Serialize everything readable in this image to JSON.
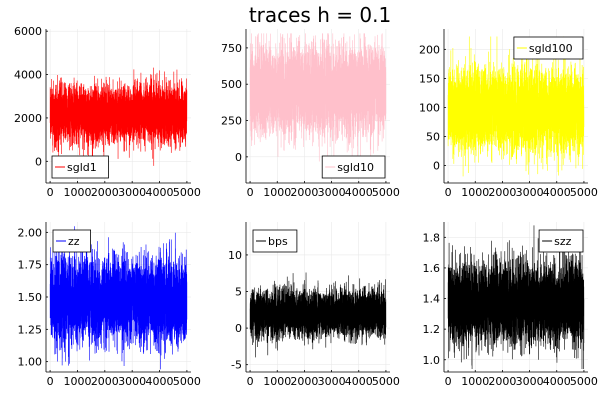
{
  "title": "traces h = 0.1",
  "chart_data": [
    {
      "type": "line",
      "series": [
        {
          "name": "sgld1",
          "color": "#ff0000",
          "mean": 2200,
          "sd": 650,
          "min": -1800,
          "max": 5800
        }
      ],
      "x": {
        "range": [
          0,
          5000
        ],
        "n_points": 5000
      },
      "xlim": [
        -150,
        5150
      ],
      "ylim": [
        -1000,
        6100
      ],
      "xticks": [
        0,
        1000,
        2000,
        3000,
        4000,
        5000
      ],
      "xtick_labels": [
        "0",
        "1000",
        "2000",
        "3000",
        "4000",
        "5000"
      ],
      "yticks": [
        0,
        2000,
        4000,
        6000
      ],
      "ytick_labels": [
        "0",
        "2000",
        "4000",
        "6000"
      ],
      "grid": true,
      "legend": "bottom-left",
      "title": "",
      "xlabel": "",
      "ylabel": ""
    },
    {
      "type": "line",
      "series": [
        {
          "name": "sgld10",
          "color": "#ffc0cb",
          "mean": 460,
          "sd": 150,
          "min": -200,
          "max": 850
        }
      ],
      "x": {
        "range": [
          0,
          5000
        ],
        "n_points": 5000
      },
      "xlim": [
        -150,
        5150
      ],
      "ylim": [
        -180,
        880
      ],
      "xticks": [
        0,
        1000,
        2000,
        3000,
        4000,
        5000
      ],
      "xtick_labels": [
        "0",
        "1000",
        "2000",
        "3000",
        "4000",
        "5000"
      ],
      "yticks": [
        0,
        250,
        500,
        750
      ],
      "ytick_labels": [
        "0",
        "250",
        "500",
        "750"
      ],
      "grid": true,
      "legend": "bottom-right",
      "title": "",
      "xlabel": "",
      "ylabel": ""
    },
    {
      "type": "line",
      "series": [
        {
          "name": "sgld100",
          "color": "#ffff00",
          "mean": 95,
          "sd": 35,
          "min": -28,
          "max": 222
        }
      ],
      "x": {
        "range": [
          0,
          5000
        ],
        "n_points": 5000
      },
      "xlim": [
        -150,
        5150
      ],
      "ylim": [
        -30,
        235
      ],
      "xticks": [
        0,
        1000,
        2000,
        3000,
        4000,
        5000
      ],
      "xtick_labels": [
        "0",
        "1000",
        "2000",
        "3000",
        "4000",
        "5000"
      ],
      "yticks": [
        0,
        50,
        100,
        150,
        200
      ],
      "ytick_labels": [
        "0",
        "50",
        "100",
        "150",
        "200"
      ],
      "grid": true,
      "legend": "top-right",
      "title": "",
      "xlabel": "",
      "ylabel": ""
    },
    {
      "type": "line",
      "series": [
        {
          "name": "zz",
          "color": "#0000ff",
          "mean": 1.47,
          "sd": 0.16,
          "min": 0.94,
          "max": 2.05
        }
      ],
      "x": {
        "range": [
          0,
          5000
        ],
        "n_points": 5000
      },
      "xlim": [
        -150,
        5150
      ],
      "ylim": [
        0.92,
        2.08
      ],
      "xticks": [
        0,
        1000,
        2000,
        3000,
        4000,
        5000
      ],
      "xtick_labels": [
        "0",
        "1000",
        "2000",
        "3000",
        "4000",
        "5000"
      ],
      "yticks": [
        1.0,
        1.25,
        1.5,
        1.75,
        2.0
      ],
      "ytick_labels": [
        "1.00",
        "1.25",
        "1.50",
        "1.75",
        "2.00"
      ],
      "grid": true,
      "legend": "top-left",
      "title": "",
      "xlabel": "",
      "ylabel": ""
    },
    {
      "type": "line",
      "series": [
        {
          "name": "bps",
          "color": "#000000",
          "mean": 2.0,
          "sd": 1.6,
          "min": -5.5,
          "max": 13.5
        }
      ],
      "x": {
        "range": [
          0,
          5000
        ],
        "n_points": 5000
      },
      "xlim": [
        -150,
        5150
      ],
      "ylim": [
        -6,
        14.5
      ],
      "xticks": [
        0,
        1000,
        2000,
        3000,
        4000,
        5000
      ],
      "xtick_labels": [
        "0",
        "1000",
        "2000",
        "3000",
        "4000",
        "5000"
      ],
      "yticks": [
        -5,
        0,
        5,
        10
      ],
      "ytick_labels": [
        "-5",
        "0",
        "5",
        "10"
      ],
      "grid": true,
      "legend": "top-left",
      "title": "",
      "xlabel": "",
      "ylabel": ""
    },
    {
      "type": "line",
      "series": [
        {
          "name": "szz",
          "color": "#000000",
          "mean": 1.37,
          "sd": 0.13,
          "min": 0.94,
          "max": 1.88
        }
      ],
      "x": {
        "range": [
          0,
          5000
        ],
        "n_points": 5000
      },
      "xlim": [
        -150,
        5150
      ],
      "ylim": [
        0.92,
        1.9
      ],
      "xticks": [
        0,
        1000,
        2000,
        3000,
        4000,
        5000
      ],
      "xtick_labels": [
        "0",
        "1000",
        "2000",
        "3000",
        "4000",
        "5000"
      ],
      "yticks": [
        1.0,
        1.2,
        1.4,
        1.6,
        1.8
      ],
      "ytick_labels": [
        "1.0",
        "1.2",
        "1.4",
        "1.6",
        "1.8"
      ],
      "grid": true,
      "legend": "top-right",
      "title": "",
      "xlabel": "",
      "ylabel": ""
    }
  ]
}
